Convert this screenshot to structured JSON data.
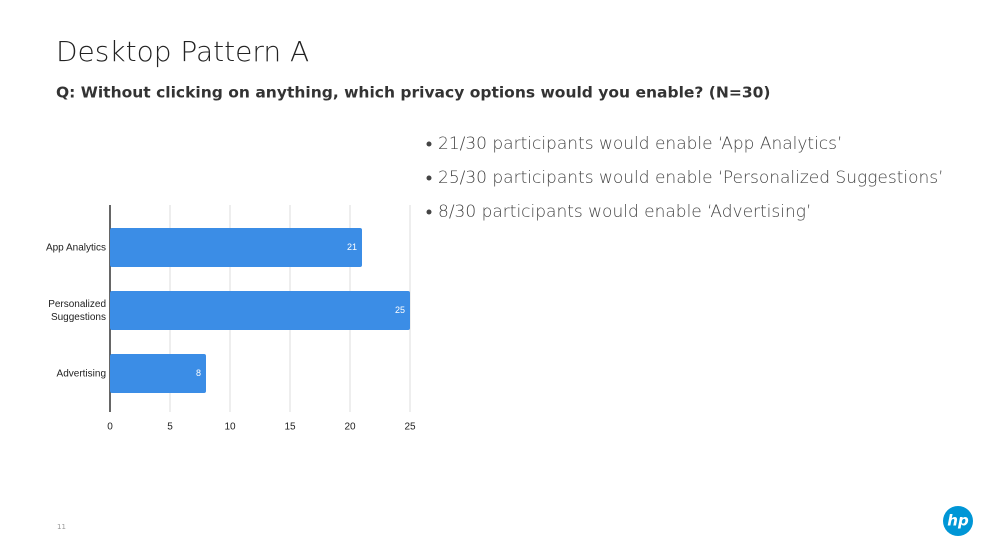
{
  "title": "Desktop Pattern A",
  "subtitle": "Q: Without clicking on anything, which privacy options would you enable? (N=30)",
  "bullets": [
    "21/30 participants would enable ‘App Analytics’",
    "25/30  participants would enable ‘Personalized Suggestions’",
    "8/30 participants would enable ‘Advertising’"
  ],
  "page_number": "11",
  "logo": "hp",
  "chart_data": {
    "type": "bar",
    "orientation": "horizontal",
    "categories": [
      "App Analytics",
      "Personalized Suggestions",
      "Advertising"
    ],
    "values": [
      21,
      25,
      8
    ],
    "color": "#3b8de6",
    "xlim": [
      0,
      25
    ],
    "xticks": [
      0,
      5,
      10,
      15,
      20,
      25
    ],
    "grid": true
  }
}
